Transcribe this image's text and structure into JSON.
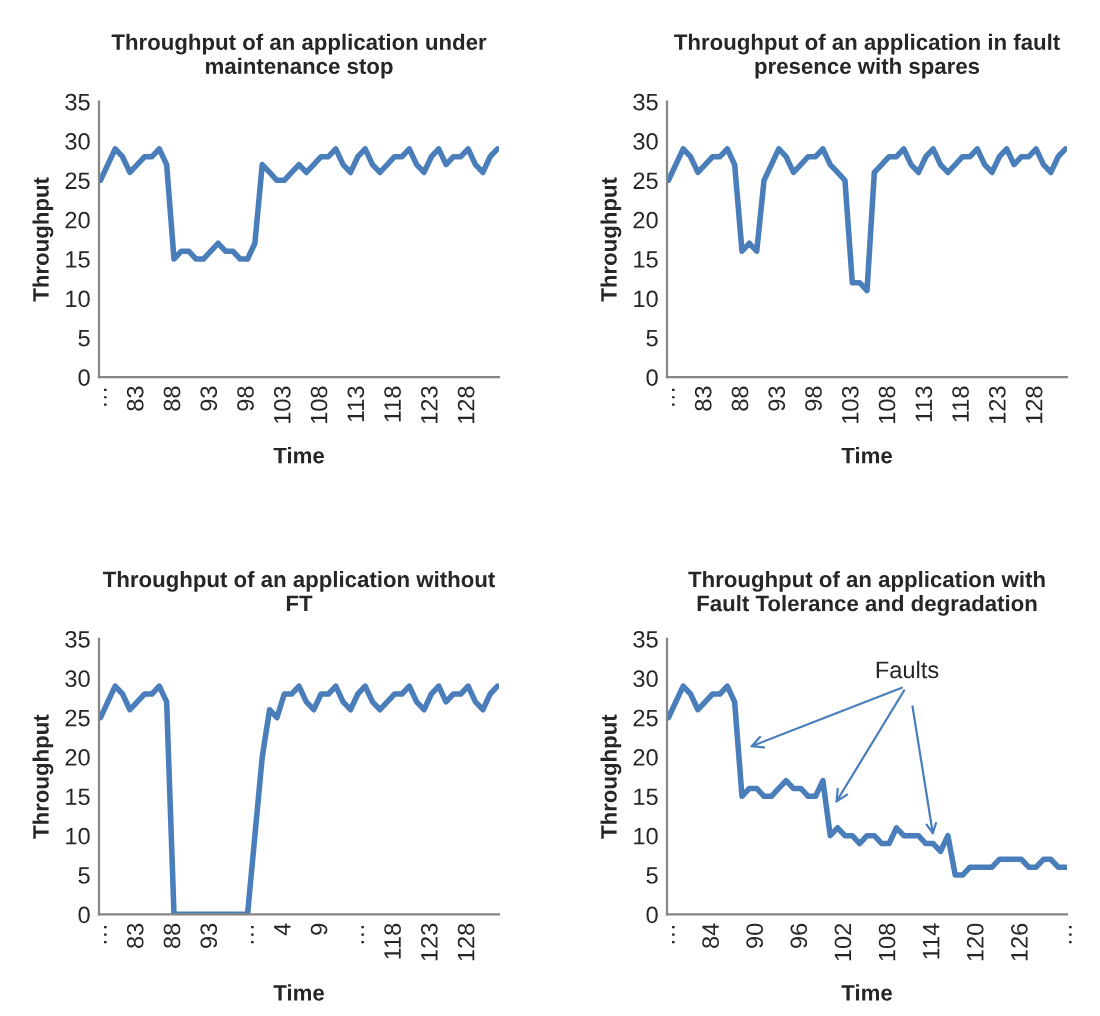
{
  "chart_data": [
    {
      "type": "line",
      "title": "Throughput of an application under\nmaintenance stop",
      "xlabel": "Time",
      "ylabel": "Throughput",
      "ylim": [
        0,
        35
      ],
      "yticks": [
        0,
        5,
        10,
        15,
        20,
        25,
        30,
        35
      ],
      "grid": false,
      "legend": false,
      "categories": [
        "…",
        null,
        null,
        null,
        null,
        "83",
        null,
        null,
        null,
        null,
        "88",
        null,
        null,
        null,
        null,
        "93",
        null,
        null,
        null,
        null,
        "98",
        null,
        null,
        null,
        null,
        "103",
        null,
        null,
        null,
        null,
        "108",
        null,
        null,
        null,
        null,
        "113",
        null,
        null,
        null,
        null,
        "118",
        null,
        null,
        null,
        null,
        "123",
        null,
        null,
        null,
        null,
        "128",
        null,
        null,
        null,
        null
      ],
      "series": [
        {
          "color": "#4a7ebb",
          "values": [
            25,
            27,
            29,
            28,
            26,
            27,
            28,
            28,
            29,
            27,
            15,
            16,
            16,
            15,
            15,
            16,
            17,
            16,
            16,
            15,
            15,
            17,
            27,
            26,
            25,
            25,
            26,
            27,
            26,
            27,
            28,
            28,
            29,
            27,
            26,
            28,
            29,
            27,
            26,
            27,
            28,
            28,
            29,
            27,
            26,
            28,
            29,
            27,
            28,
            28,
            29,
            27,
            26,
            28,
            29
          ]
        }
      ]
    },
    {
      "type": "line",
      "title": "Throughput of an application in fault\npresence with spares",
      "xlabel": "Time",
      "ylabel": "Throughput",
      "ylim": [
        0,
        35
      ],
      "yticks": [
        0,
        5,
        10,
        15,
        20,
        25,
        30,
        35
      ],
      "grid": false,
      "legend": false,
      "categories": [
        "…",
        null,
        null,
        null,
        null,
        "83",
        null,
        null,
        null,
        null,
        "88",
        null,
        null,
        null,
        null,
        "93",
        null,
        null,
        null,
        null,
        "98",
        null,
        null,
        null,
        null,
        "103",
        null,
        null,
        null,
        null,
        "108",
        null,
        null,
        null,
        null,
        "113",
        null,
        null,
        null,
        null,
        "118",
        null,
        null,
        null,
        null,
        "123",
        null,
        null,
        null,
        null,
        "128",
        null,
        null,
        null,
        null
      ],
      "series": [
        {
          "color": "#4a7ebb",
          "values": [
            25,
            27,
            29,
            28,
            26,
            27,
            28,
            28,
            29,
            27,
            16,
            17,
            16,
            25,
            27,
            29,
            28,
            26,
            27,
            28,
            28,
            29,
            27,
            26,
            25,
            12,
            12,
            11,
            26,
            27,
            28,
            28,
            29,
            27,
            26,
            28,
            29,
            27,
            26,
            27,
            28,
            28,
            29,
            27,
            26,
            28,
            29,
            27,
            28,
            28,
            29,
            27,
            26,
            28,
            29
          ]
        }
      ]
    },
    {
      "type": "line",
      "title": "Throughput of an application without\nFT",
      "xlabel": "Time",
      "ylabel": "Throughput",
      "ylim": [
        0,
        35
      ],
      "yticks": [
        0,
        5,
        10,
        15,
        20,
        25,
        30,
        35
      ],
      "grid": false,
      "legend": false,
      "categories": [
        "…",
        null,
        null,
        null,
        null,
        "83",
        null,
        null,
        null,
        null,
        "88",
        null,
        null,
        null,
        null,
        "93",
        null,
        null,
        null,
        null,
        "…",
        null,
        null,
        null,
        null,
        "4",
        null,
        null,
        null,
        null,
        "9",
        null,
        null,
        null,
        null,
        "…",
        null,
        null,
        null,
        null,
        "118",
        null,
        null,
        null,
        null,
        "123",
        null,
        null,
        null,
        null,
        "128",
        null,
        null,
        null,
        null
      ],
      "series": [
        {
          "color": "#4a7ebb",
          "values": [
            25,
            27,
            29,
            28,
            26,
            27,
            28,
            28,
            29,
            27,
            0,
            0,
            0,
            0,
            0,
            0,
            0,
            0,
            0,
            0,
            0,
            10,
            20,
            26,
            25,
            28,
            28,
            29,
            27,
            26,
            28,
            28,
            29,
            27,
            26,
            28,
            29,
            27,
            26,
            27,
            28,
            28,
            29,
            27,
            26,
            28,
            29,
            27,
            28,
            28,
            29,
            27,
            26,
            28,
            29
          ]
        }
      ]
    },
    {
      "type": "line",
      "title": "Throughput of an application with\nFault Tolerance and degradation",
      "xlabel": "Time",
      "ylabel": "Throughput",
      "ylim": [
        0,
        35
      ],
      "yticks": [
        0,
        5,
        10,
        15,
        20,
        25,
        30,
        35
      ],
      "grid": false,
      "legend": false,
      "annotations": [
        {
          "text": "Faults",
          "x": "114",
          "y": 10
        }
      ],
      "categories": [
        "…",
        null,
        null,
        null,
        null,
        null,
        "84",
        null,
        null,
        null,
        null,
        null,
        "90",
        null,
        null,
        null,
        null,
        null,
        "96",
        null,
        null,
        null,
        null,
        null,
        "102",
        null,
        null,
        null,
        null,
        null,
        "108",
        null,
        null,
        null,
        null,
        null,
        "114",
        null,
        null,
        null,
        null,
        null,
        "120",
        null,
        null,
        null,
        null,
        null,
        "126",
        null,
        null,
        null,
        null,
        null,
        "…"
      ],
      "series": [
        {
          "color": "#4a7ebb",
          "values": [
            25,
            27,
            29,
            28,
            26,
            27,
            28,
            28,
            29,
            27,
            15,
            16,
            16,
            15,
            15,
            16,
            17,
            16,
            16,
            15,
            15,
            17,
            10,
            11,
            10,
            10,
            9,
            10,
            10,
            9,
            9,
            11,
            10,
            10,
            10,
            9,
            9,
            8,
            10,
            5,
            5,
            6,
            6,
            6,
            6,
            7,
            7,
            7,
            7,
            6,
            6,
            7,
            7,
            6,
            6
          ]
        }
      ]
    }
  ]
}
